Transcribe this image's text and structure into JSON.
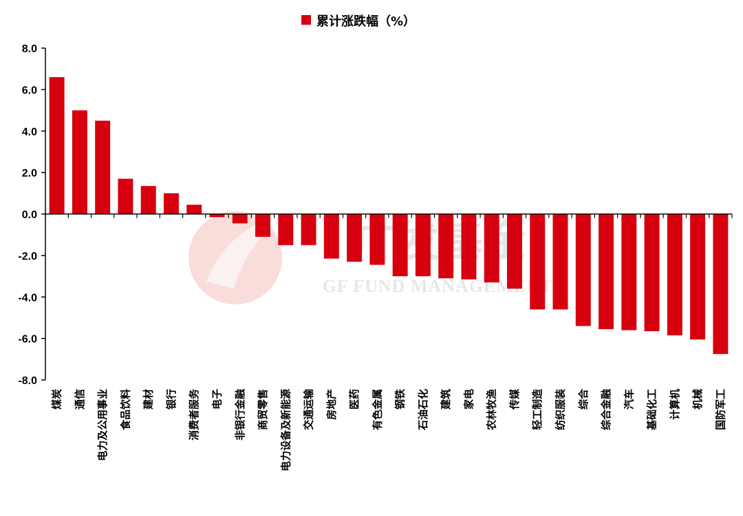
{
  "chart_data": {
    "type": "bar",
    "legend": {
      "label": "累计涨跌幅（%）",
      "color": "#d7000f",
      "placement": "top-center"
    },
    "categories": [
      "煤炭",
      "通信",
      "电力及公用事业",
      "食品饮料",
      "建材",
      "银行",
      "消费者服务",
      "电子",
      "非银行金融",
      "商贸零售",
      "电力设备及新能源",
      "交通运输",
      "房地产",
      "医药",
      "有色金属",
      "钢铁",
      "石油石化",
      "建筑",
      "家电",
      "农林牧渔",
      "传媒",
      "轻工制造",
      "纺织服装",
      "综合",
      "综合金融",
      "汽车",
      "基础化工",
      "计算机",
      "机械",
      "国防军工"
    ],
    "series": [
      {
        "name": "累计涨跌幅（%）",
        "values": [
          6.6,
          5.0,
          4.5,
          1.7,
          1.35,
          1.0,
          0.45,
          -0.15,
          -0.45,
          -1.1,
          -1.5,
          -1.5,
          -2.15,
          -2.3,
          -2.45,
          -3.0,
          -3.0,
          -3.1,
          -3.15,
          -3.3,
          -3.6,
          -4.6,
          -4.6,
          -5.4,
          -5.55,
          -5.6,
          -5.65,
          -5.85,
          -6.05,
          -6.75
        ]
      }
    ],
    "ylim": [
      -8.0,
      8.0
    ],
    "yticks": [
      "8.0",
      "6.0",
      "4.0",
      "2.0",
      "0.0",
      "-2.0",
      "-4.0",
      "-6.0",
      "-8.0"
    ],
    "bar_color": "#d7000f",
    "grid": false
  },
  "watermark": {
    "brand": "广发基金",
    "text": "GF FUND MANAGEMENT"
  }
}
